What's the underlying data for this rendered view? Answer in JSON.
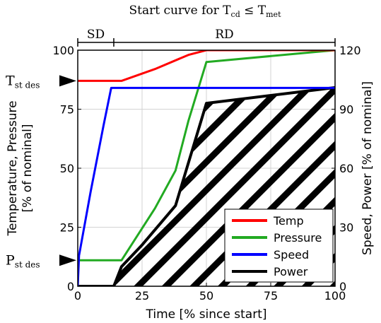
{
  "chart_data": {
    "type": "line",
    "title_parts": {
      "prefix": "Start curve for T",
      "sub1": "cd",
      "rel": " ≤ T",
      "sub2": "met"
    },
    "xlabel": "Time [% since start]",
    "ylabel_left_line1": "Temperature, Pressure",
    "ylabel_left_line2": "[% of nominal]",
    "ylabel_right": "Speed, Power [% of nominal]",
    "xlim": [
      0,
      100
    ],
    "ylim_left": [
      0,
      100
    ],
    "ylim_right": [
      0,
      120
    ],
    "xticks": [
      0,
      25,
      50,
      75,
      100
    ],
    "yticks_left": [
      0,
      25,
      50,
      75,
      100
    ],
    "yticks_right": [
      0,
      30,
      60,
      90,
      120
    ],
    "grid": true,
    "legend_position": "bottom-right",
    "phases": [
      {
        "label": "SD",
        "x_start": 0,
        "x_end": 14
      },
      {
        "label": "RD",
        "x_start": 14,
        "x_end": 100
      }
    ],
    "markers": [
      {
        "label": "T",
        "sub": "st des",
        "axis": "left",
        "value": 87
      },
      {
        "label": "P",
        "sub": "st des",
        "axis": "left",
        "value": 11
      }
    ],
    "series": [
      {
        "name": "Temp",
        "axis": "left",
        "color": "#ff0000",
        "x": [
          0,
          17,
          30,
          43,
          50,
          100
        ],
        "y": [
          87,
          87,
          92,
          98,
          100,
          100
        ]
      },
      {
        "name": "Pressure",
        "axis": "left",
        "color": "#22aa22",
        "x": [
          0,
          17,
          30,
          38,
          43,
          50,
          100
        ],
        "y": [
          11,
          11,
          33,
          49,
          70,
          95,
          100
        ]
      },
      {
        "name": "Speed",
        "axis": "left",
        "color": "#0000ff",
        "x": [
          0,
          0.5,
          5,
          10,
          13,
          100
        ],
        "y": [
          0,
          13,
          40,
          68,
          84,
          84
        ]
      },
      {
        "name": "Power",
        "axis": "right",
        "color": "#000000",
        "hatched": true,
        "x": [
          0,
          14,
          17,
          25,
          38,
          50,
          100
        ],
        "y": [
          0,
          0,
          10,
          21,
          41,
          93,
          101
        ]
      }
    ]
  }
}
